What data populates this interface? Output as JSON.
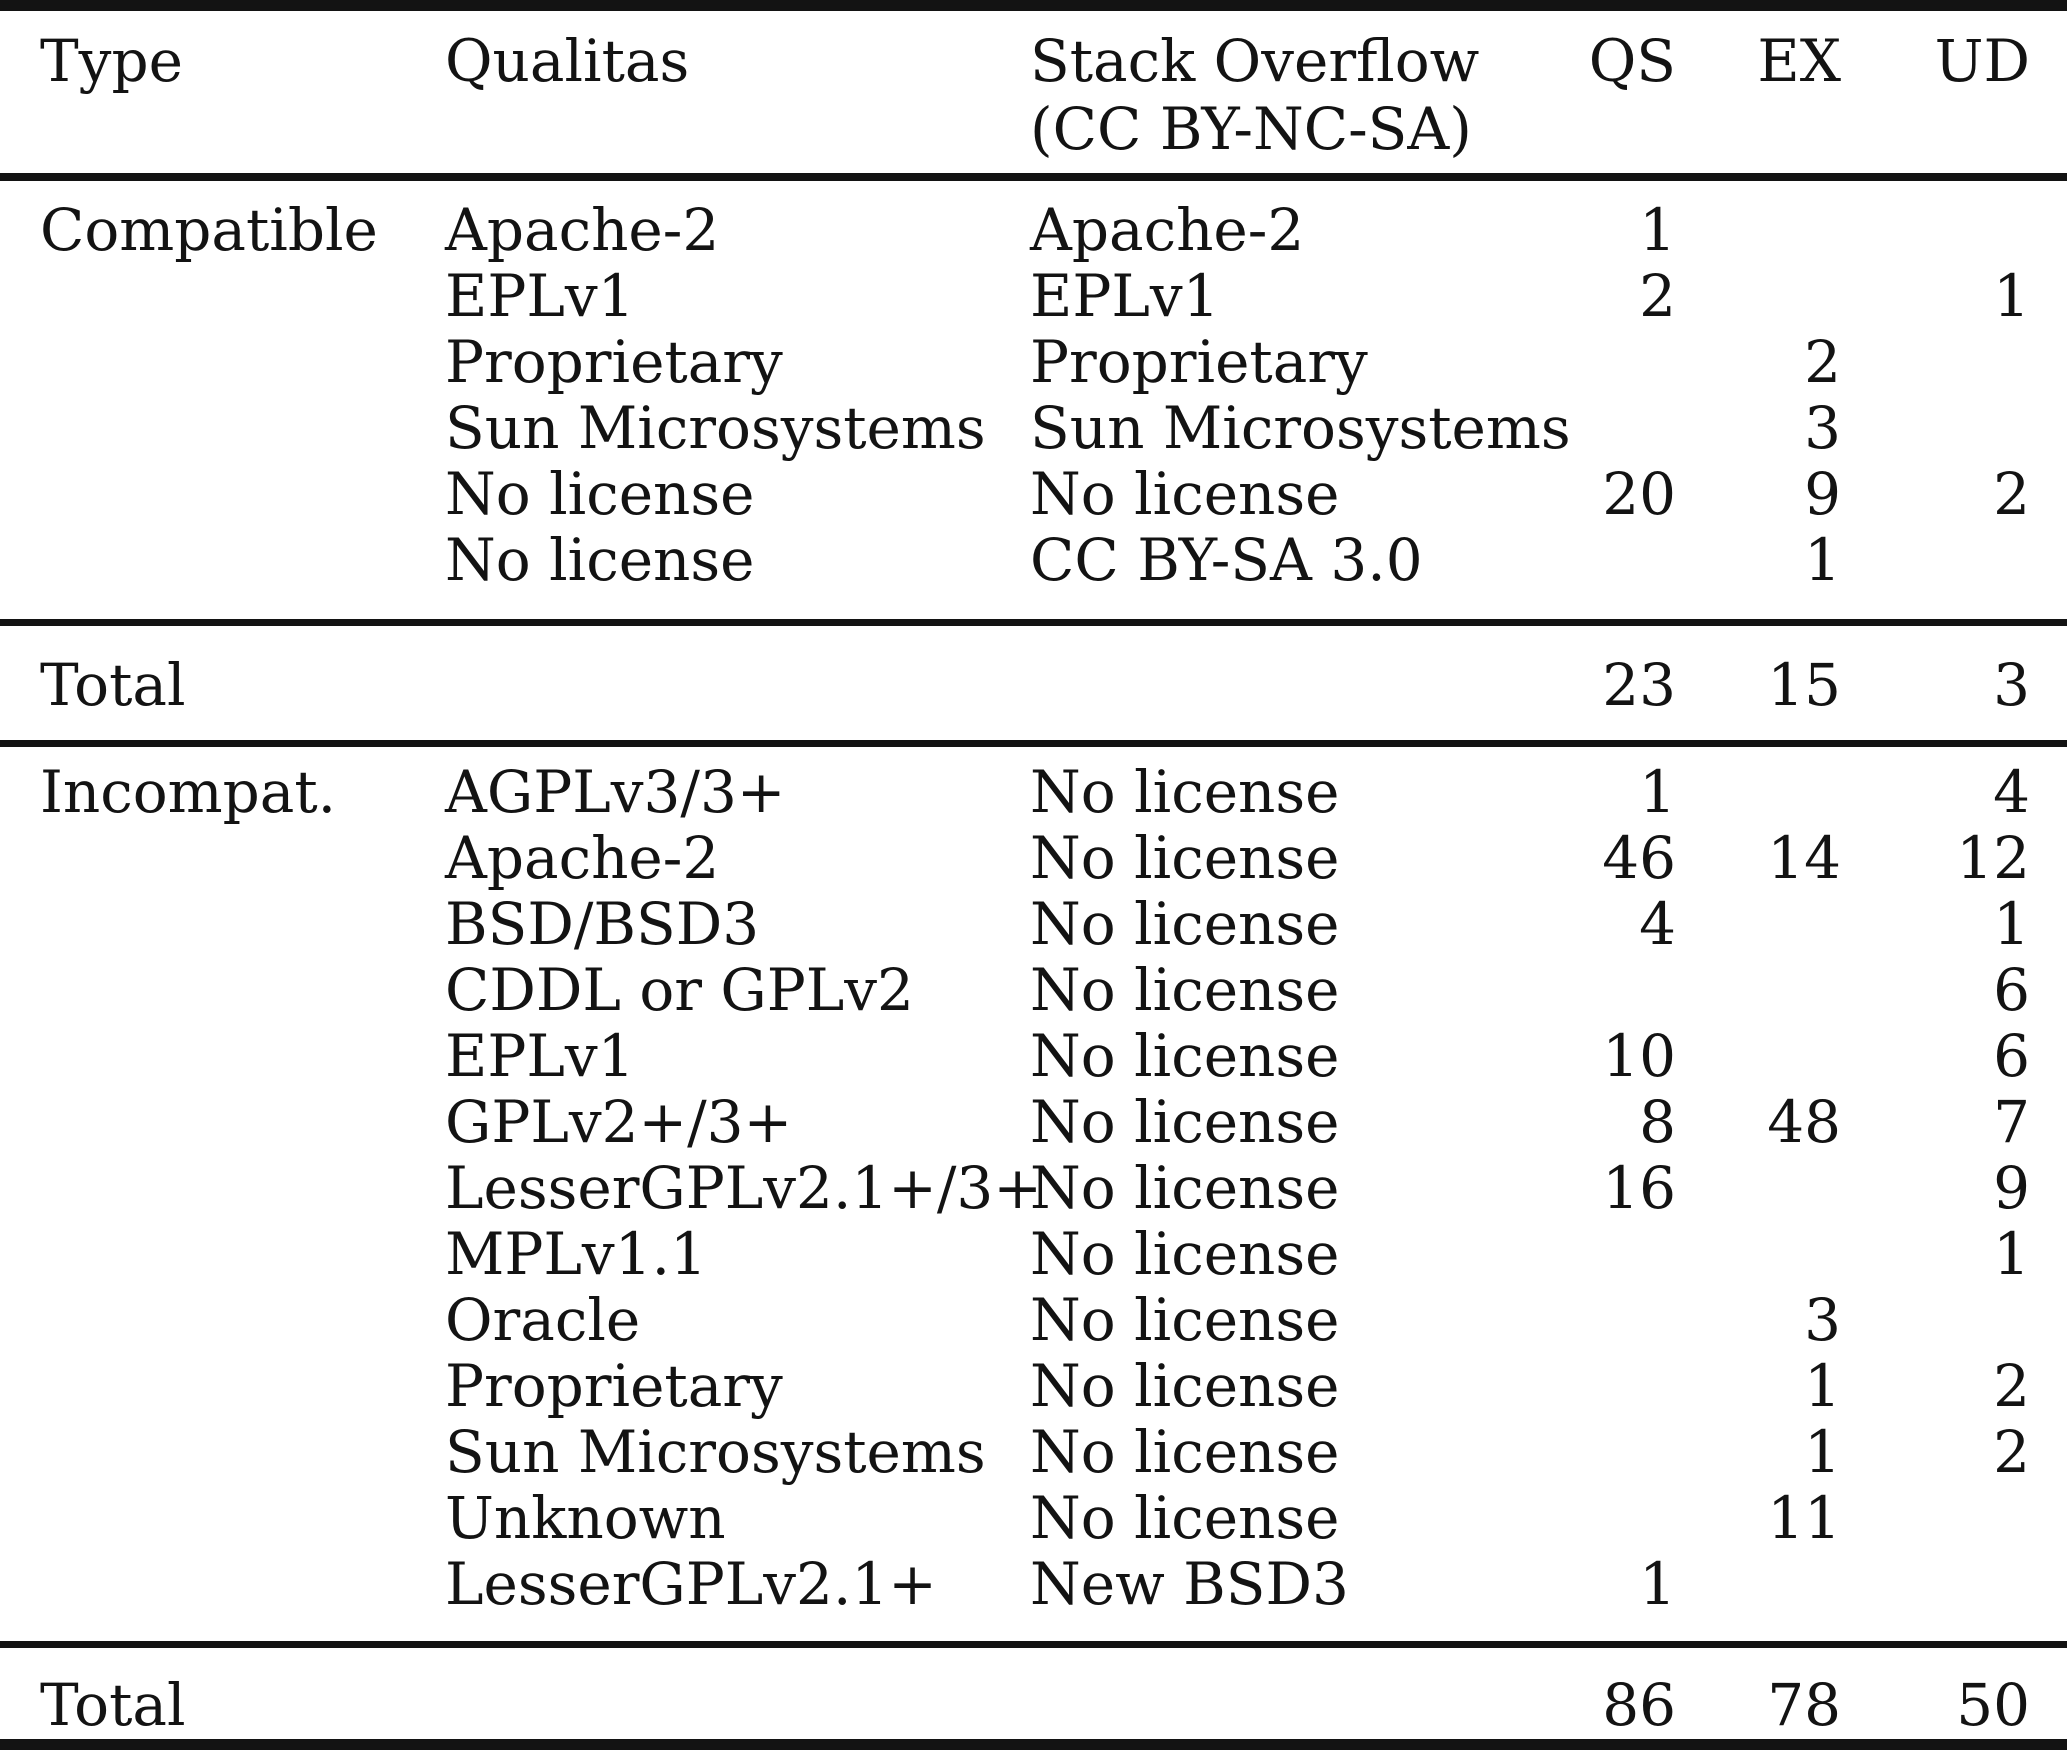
{
  "table": {
    "header": {
      "type": "Type",
      "qualitas": "Qualitas",
      "so_line1": "Stack Overflow",
      "so_line2": "(CC BY-NC-SA)",
      "qs": "QS",
      "ex": "EX",
      "ud": "UD"
    },
    "sections": [
      {
        "type_label": "Compatible",
        "rows": [
          {
            "qualitas": "Apache-2",
            "so": "Apache-2",
            "qs": "1",
            "ex": "",
            "ud": ""
          },
          {
            "qualitas": "EPLv1",
            "so": "EPLv1",
            "qs": "2",
            "ex": "",
            "ud": "1"
          },
          {
            "qualitas": "Proprietary",
            "so": "Proprietary",
            "qs": "",
            "ex": "2",
            "ud": ""
          },
          {
            "qualitas": "Sun Microsystems",
            "so": "Sun Microsystems",
            "qs": "",
            "ex": "3",
            "ud": ""
          },
          {
            "qualitas": "No license",
            "so": "No license",
            "qs": "20",
            "ex": "9",
            "ud": "2"
          },
          {
            "qualitas": "No license",
            "so": "CC BY-SA 3.0",
            "qs": "",
            "ex": "1",
            "ud": ""
          }
        ],
        "total": {
          "label": "Total",
          "qs": "23",
          "ex": "15",
          "ud": "3"
        }
      },
      {
        "type_label": "Incompat.",
        "rows": [
          {
            "qualitas": "AGPLv3/3+",
            "so": "No license",
            "qs": "1",
            "ex": "",
            "ud": "4"
          },
          {
            "qualitas": "Apache-2",
            "so": "No license",
            "qs": "46",
            "ex": "14",
            "ud": "12"
          },
          {
            "qualitas": "BSD/BSD3",
            "so": "No license",
            "qs": "4",
            "ex": "",
            "ud": "1"
          },
          {
            "qualitas": "CDDL or GPLv2",
            "so": "No license",
            "qs": "",
            "ex": "",
            "ud": "6"
          },
          {
            "qualitas": "EPLv1",
            "so": "No license",
            "qs": "10",
            "ex": "",
            "ud": "6"
          },
          {
            "qualitas": "GPLv2+/3+",
            "so": "No license",
            "qs": "8",
            "ex": "48",
            "ud": "7"
          },
          {
            "qualitas": "LesserGPLv2.1+/3+",
            "so": "No license",
            "qs": "16",
            "ex": "",
            "ud": "9"
          },
          {
            "qualitas": "MPLv1.1",
            "so": "No license",
            "qs": "",
            "ex": "",
            "ud": "1"
          },
          {
            "qualitas": "Oracle",
            "so": "No license",
            "qs": "",
            "ex": "3",
            "ud": ""
          },
          {
            "qualitas": "Proprietary",
            "so": "No license",
            "qs": "",
            "ex": "1",
            "ud": "2"
          },
          {
            "qualitas": "Sun Microsystems",
            "so": "No license",
            "qs": "",
            "ex": "1",
            "ud": "2"
          },
          {
            "qualitas": "Unknown",
            "so": "No license",
            "qs": "",
            "ex": "11",
            "ud": ""
          },
          {
            "qualitas": "LesserGPLv2.1+",
            "so": "New BSD3",
            "qs": "1",
            "ex": "",
            "ud": ""
          }
        ],
        "total": {
          "label": "Total",
          "qs": "86",
          "ex": "78",
          "ud": "50"
        }
      }
    ]
  },
  "chart_data": {
    "type": "table",
    "columns": [
      "Type",
      "Qualitas",
      "Stack Overflow (CC BY-NC-SA)",
      "QS",
      "EX",
      "UD"
    ],
    "rows": [
      [
        "Compatible",
        "Apache-2",
        "Apache-2",
        1,
        null,
        null
      ],
      [
        "Compatible",
        "EPLv1",
        "EPLv1",
        2,
        null,
        1
      ],
      [
        "Compatible",
        "Proprietary",
        "Proprietary",
        null,
        2,
        null
      ],
      [
        "Compatible",
        "Sun Microsystems",
        "Sun Microsystems",
        null,
        3,
        null
      ],
      [
        "Compatible",
        "No license",
        "No license",
        20,
        9,
        2
      ],
      [
        "Compatible",
        "No license",
        "CC BY-SA 3.0",
        null,
        1,
        null
      ],
      [
        "Total (Compatible)",
        "",
        "",
        23,
        15,
        3
      ],
      [
        "Incompat.",
        "AGPLv3/3+",
        "No license",
        1,
        null,
        4
      ],
      [
        "Incompat.",
        "Apache-2",
        "No license",
        46,
        14,
        12
      ],
      [
        "Incompat.",
        "BSD/BSD3",
        "No license",
        4,
        null,
        1
      ],
      [
        "Incompat.",
        "CDDL or GPLv2",
        "No license",
        null,
        null,
        6
      ],
      [
        "Incompat.",
        "EPLv1",
        "No license",
        10,
        null,
        6
      ],
      [
        "Incompat.",
        "GPLv2+/3+",
        "No license",
        8,
        48,
        7
      ],
      [
        "Incompat.",
        "LesserGPLv2.1+/3+",
        "No license",
        16,
        null,
        9
      ],
      [
        "Incompat.",
        "MPLv1.1",
        "No license",
        null,
        null,
        1
      ],
      [
        "Incompat.",
        "Oracle",
        "No license",
        null,
        3,
        null
      ],
      [
        "Incompat.",
        "Proprietary",
        "No license",
        null,
        1,
        2
      ],
      [
        "Incompat.",
        "Sun Microsystems",
        "No license",
        null,
        1,
        2
      ],
      [
        "Incompat.",
        "Unknown",
        "No license",
        null,
        11,
        null
      ],
      [
        "Incompat.",
        "LesserGPLv2.1+",
        "New BSD3",
        1,
        null,
        null
      ],
      [
        "Total (Incompat.)",
        "",
        "",
        86,
        78,
        50
      ]
    ]
  }
}
